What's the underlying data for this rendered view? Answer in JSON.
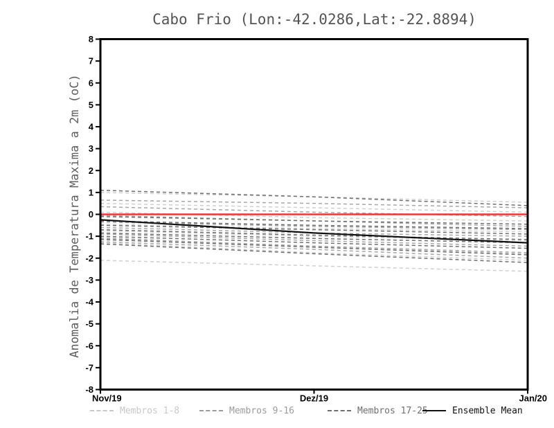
{
  "chart_data": {
    "type": "line",
    "title": "Cabo Frio (Lon:-42.0286,Lat:-22.8894)",
    "ylabel": "Anomalia de Temperatura Maxima a 2m (oC)",
    "xlabel": "",
    "ylim": [
      -8,
      8
    ],
    "ytick_step": 1,
    "ytick_labels": [
      "8",
      "7",
      "6",
      "5",
      "4",
      "3",
      "2",
      "1",
      "0",
      "-1",
      "-2",
      "-3",
      "-4",
      "-5",
      "-6",
      "-7",
      "-8"
    ],
    "x_categories": [
      "Nov/19",
      "Dez/19",
      "Jan/20"
    ],
    "grid": false,
    "legend_position": "bottom",
    "styles": {
      "membros-1-8": {
        "color": "#cfcfcf",
        "dash": "5 4",
        "width": 1.5
      },
      "membros-9-16": {
        "color": "#a6a6a6",
        "dash": "5 4",
        "width": 1.5
      },
      "membros-17-25": {
        "color": "#6e6e6e",
        "dash": "5 4",
        "width": 1.5
      },
      "zero-reference": {
        "color": "#ee3535",
        "dash": "",
        "width": 2.6
      },
      "ensemble-mean": {
        "color": "#111111",
        "dash": "",
        "width": 2.2
      }
    },
    "series": [
      {
        "group": "membros-1-8",
        "values": [
          1.0,
          0.8,
          0.55
        ]
      },
      {
        "group": "membros-1-8",
        "values": [
          0.5,
          0.3,
          0.1
        ]
      },
      {
        "group": "membros-1-8",
        "values": [
          0.1,
          -0.15,
          -0.3
        ]
      },
      {
        "group": "membros-1-8",
        "values": [
          -0.45,
          -0.65,
          -0.8
        ]
      },
      {
        "group": "membros-1-8",
        "values": [
          -0.75,
          -1.0,
          -1.2
        ]
      },
      {
        "group": "membros-1-8",
        "values": [
          -1.05,
          -1.5,
          -1.8
        ]
      },
      {
        "group": "membros-1-8",
        "values": [
          -1.3,
          -1.75,
          -2.1
        ]
      },
      {
        "group": "membros-1-8",
        "values": [
          -2.1,
          -2.35,
          -2.6
        ]
      },
      {
        "group": "membros-9-16",
        "values": [
          0.65,
          0.5,
          0.3
        ]
      },
      {
        "group": "membros-9-16",
        "values": [
          0.35,
          0.1,
          -0.1
        ]
      },
      {
        "group": "membros-9-16",
        "values": [
          -0.05,
          -0.3,
          -0.55
        ]
      },
      {
        "group": "membros-9-16",
        "values": [
          -0.35,
          -0.55,
          -0.7
        ]
      },
      {
        "group": "membros-9-16",
        "values": [
          -0.6,
          -0.85,
          -1.0
        ]
      },
      {
        "group": "membros-9-16",
        "values": [
          -0.9,
          -1.2,
          -1.45
        ]
      },
      {
        "group": "membros-9-16",
        "values": [
          -1.1,
          -1.45,
          -1.75
        ]
      },
      {
        "group": "membros-9-16",
        "values": [
          -1.25,
          -1.6,
          -2.0
        ]
      },
      {
        "group": "membros-17-25",
        "values": [
          1.1,
          0.8,
          0.4
        ]
      },
      {
        "group": "membros-17-25",
        "values": [
          -0.1,
          -0.3,
          -0.45
        ]
      },
      {
        "group": "membros-17-25",
        "values": [
          -0.3,
          -0.5,
          -0.65
        ]
      },
      {
        "group": "membros-17-25",
        "values": [
          -0.5,
          -0.7,
          -0.9
        ]
      },
      {
        "group": "membros-17-25",
        "values": [
          -0.7,
          -0.95,
          -1.15
        ]
      },
      {
        "group": "membros-17-25",
        "values": [
          -0.85,
          -1.1,
          -1.3
        ]
      },
      {
        "group": "membros-17-25",
        "values": [
          -1.0,
          -1.3,
          -1.55
        ]
      },
      {
        "group": "membros-17-25",
        "values": [
          -1.15,
          -1.5,
          -1.85
        ]
      },
      {
        "group": "membros-17-25",
        "values": [
          -1.35,
          -1.8,
          -2.2
        ]
      },
      {
        "group": "zero-reference",
        "values": [
          0,
          0,
          0
        ]
      },
      {
        "group": "ensemble-mean",
        "name": "Ensemble Mean",
        "values": [
          -0.25,
          -0.85,
          -1.3
        ]
      }
    ],
    "legend": [
      {
        "label": "Membros 1-8",
        "color": "#c8c8c8",
        "dashed": true,
        "x": 130
      },
      {
        "label": "Membros 9-16",
        "color": "#9a9a9a",
        "dashed": true,
        "x": 288
      },
      {
        "label": "Membros 17-25",
        "color": "#6e6e6e",
        "dashed": true,
        "x": 473
      },
      {
        "label": "Ensemble Mean",
        "color": "#111111",
        "dashed": false,
        "x": 610
      }
    ]
  },
  "colors": {
    "axis": "#000000",
    "title_text": "#545454",
    "ylabel_text": "#5e5e5e"
  }
}
